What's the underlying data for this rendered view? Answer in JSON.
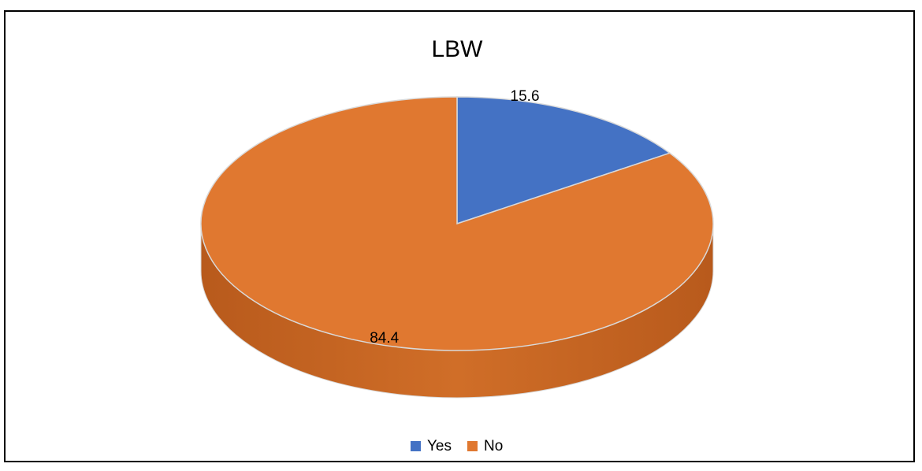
{
  "chart_data": {
    "type": "pie",
    "title": "LBW",
    "categories": [
      "Yes",
      "No"
    ],
    "values": [
      15.6,
      84.4
    ],
    "colors": [
      "#4472c4",
      "#e07830"
    ],
    "legend": "bottom"
  }
}
